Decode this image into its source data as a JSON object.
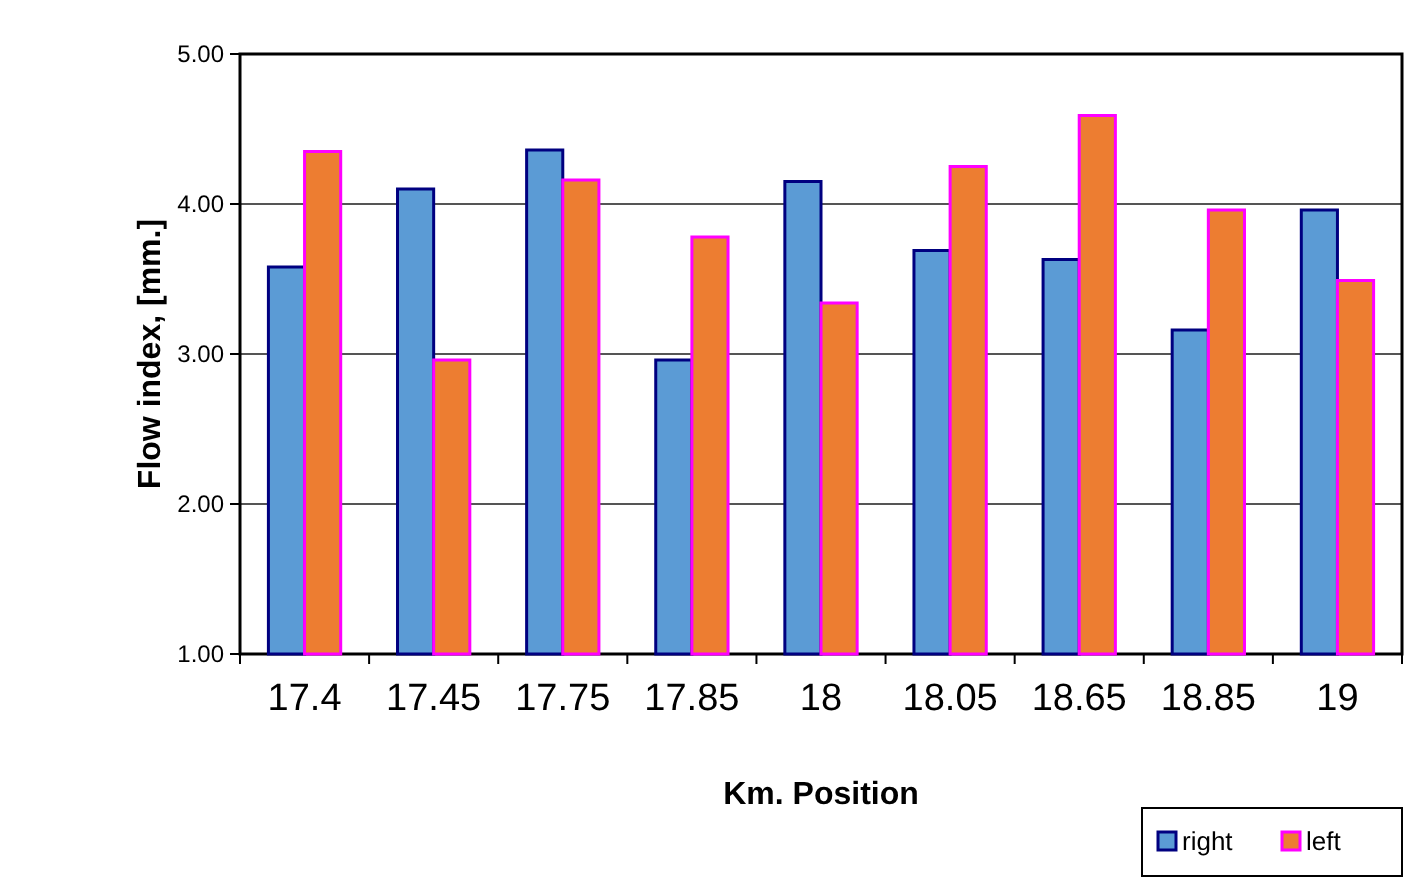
{
  "chart_data": {
    "type": "bar",
    "xlabel": "Km. Position",
    "ylabel": "Flow index, [mm.]",
    "categories": [
      "17.4",
      "17.45",
      "17.75",
      "17.85",
      "18",
      "18.05",
      "18.65",
      "18.85",
      "19"
    ],
    "series": [
      {
        "name": "right",
        "color": "#5b9bd5",
        "values": [
          3.58,
          4.1,
          4.36,
          2.96,
          4.15,
          3.69,
          3.63,
          3.16,
          3.96
        ]
      },
      {
        "name": "left",
        "color": "#ed7d31",
        "values": [
          4.35,
          2.96,
          4.16,
          3.78,
          3.34,
          4.25,
          4.59,
          3.96,
          3.49
        ]
      }
    ],
    "ylim": [
      1,
      5
    ],
    "yticks": [
      {
        "value": 1,
        "label": "1.00"
      },
      {
        "value": 2,
        "label": "2.00"
      },
      {
        "value": 3,
        "label": "3.00"
      },
      {
        "value": 4,
        "label": "4.00"
      },
      {
        "value": 5,
        "label": "5.00"
      }
    ],
    "grid": "y",
    "legend": "bottom right"
  }
}
